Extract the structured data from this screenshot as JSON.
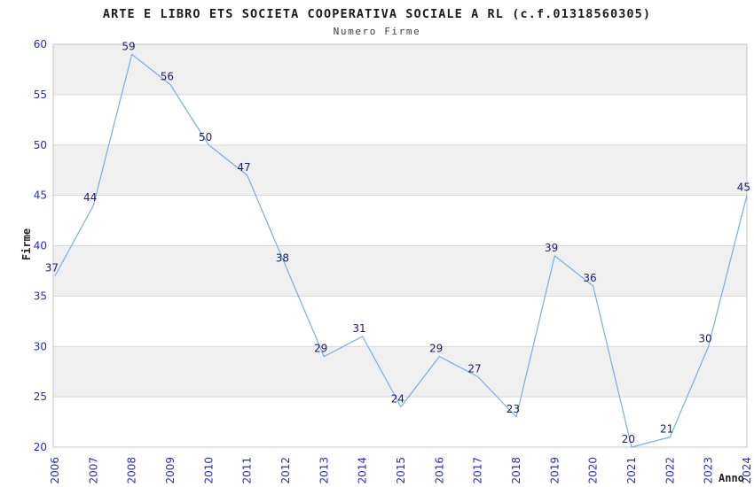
{
  "header": {
    "title": "ARTE E LIBRO ETS SOCIETA COOPERATIVA SOCIALE A RL (c.f.01318560305)",
    "subtitle": "Numero Firme"
  },
  "chart_data": {
    "type": "line",
    "title": "ARTE E LIBRO ETS SOCIETA COOPERATIVA SOCIALE A RL (c.f.01318560305)",
    "subtitle": "Numero Firme",
    "xlabel": "Anno",
    "ylabel": "Firme",
    "x": [
      2006,
      2007,
      2008,
      2009,
      2010,
      2011,
      2012,
      2013,
      2014,
      2015,
      2016,
      2017,
      2018,
      2019,
      2020,
      2021,
      2022,
      2023,
      2024
    ],
    "values": [
      37,
      44,
      59,
      56,
      50,
      47,
      38,
      29,
      31,
      24,
      29,
      27,
      23,
      39,
      36,
      20,
      21,
      30,
      45
    ],
    "ylim": [
      20,
      60
    ],
    "ytick_step": 5,
    "yticks": [
      20,
      25,
      30,
      35,
      40,
      45,
      50,
      55,
      60
    ],
    "grid": "horizontal gridlines with alternating shaded bands",
    "legend": false,
    "point_labels_visible": true,
    "colors": {
      "line": "#7aace6",
      "point_label": "#1a1a75",
      "tick_label": "#2929cc",
      "band_shaded": "#f0f0f0",
      "band_plain": "#ffffff",
      "gridline": "#d8d8d8",
      "frame": "#c6c6c6",
      "title": "#1a1a1a",
      "subtitle": "#3d3d3d"
    }
  }
}
